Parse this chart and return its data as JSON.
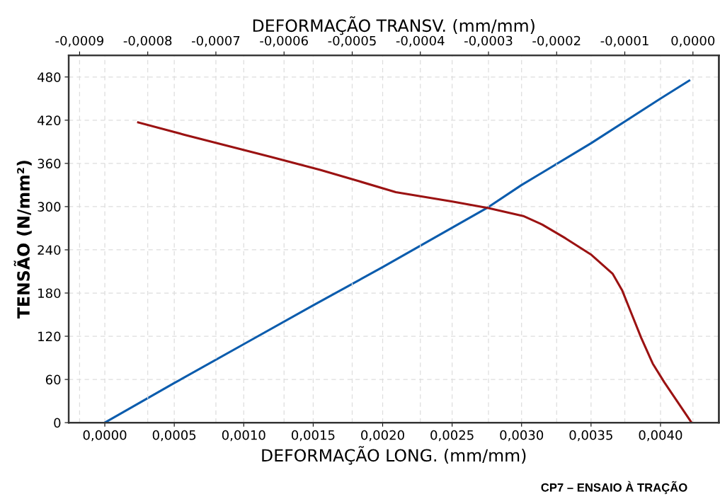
{
  "chart_data": {
    "type": "line",
    "xlabel": "DEFORMAÇÃO LONG. (mm/mm)",
    "x2label": "DEFORMAÇÃO TRANSV. (mm/mm)",
    "ylabel": "TENSÃO (N/mm²)",
    "annotations": [
      "CP7 – ENSAIO À TRAÇÃO"
    ],
    "xlim": [
      -0.00026,
      0.00442
    ],
    "xticks": [
      {
        "value": 0.0,
        "label": "0,0000"
      },
      {
        "value": 0.0005,
        "label": "0,0005"
      },
      {
        "value": 0.001,
        "label": "0,0010"
      },
      {
        "value": 0.0015,
        "label": "0,0015"
      },
      {
        "value": 0.002,
        "label": "0,0020"
      },
      {
        "value": 0.0025,
        "label": "0,0025"
      },
      {
        "value": 0.003,
        "label": "0,0030"
      },
      {
        "value": 0.0035,
        "label": "0,0035"
      },
      {
        "value": 0.004,
        "label": "0,0040"
      }
    ],
    "x2lim": [
      -0.000916,
      3.8e-05
    ],
    "x2ticks": [
      {
        "value": -0.0009,
        "label": "-0,0009"
      },
      {
        "value": -0.0008,
        "label": "-0,0008"
      },
      {
        "value": -0.0007,
        "label": "-0,0007"
      },
      {
        "value": -0.0006,
        "label": "-0,0006"
      },
      {
        "value": -0.0005,
        "label": "-0,0005"
      },
      {
        "value": -0.0004,
        "label": "-0,0004"
      },
      {
        "value": -0.0003,
        "label": "-0,0003"
      },
      {
        "value": -0.0002,
        "label": "-0,0002"
      },
      {
        "value": -0.0001,
        "label": "-0,0001"
      },
      {
        "value": 0.0,
        "label": "0,0000"
      }
    ],
    "ylim": [
      0,
      510
    ],
    "yticks": [
      0,
      60,
      120,
      180,
      240,
      300,
      360,
      420,
      480
    ],
    "grid": true,
    "marker": "none",
    "line_style": "solid",
    "series": [
      {
        "color": "#0b5cad",
        "x": [
          0.0,
          0.0005,
          0.001,
          0.0015,
          0.002,
          0.00275,
          0.003,
          0.0035,
          0.004,
          0.004207
        ],
        "values": [
          0,
          55,
          109,
          163,
          216,
          298,
          330,
          388,
          450,
          475
        ]
      },
      {
        "color": "#9b1212",
        "axis": "x2",
        "x": [
          -0.000814,
          -0.000747,
          -0.000619,
          -0.000547,
          -0.000489,
          -0.000436,
          -0.000353,
          -0.0003,
          -0.000249,
          -0.000221,
          -0.000187,
          -0.000149,
          -0.000118,
          -0.000104,
          -9e-05,
          -7.6e-05,
          -5.9e-05,
          -4.2e-05,
          -2e-06
        ],
        "values": [
          417,
          400,
          369,
          351,
          335,
          320,
          307,
          298,
          287,
          275,
          256,
          233,
          207,
          184,
          151,
          118,
          82,
          56,
          0
        ]
      }
    ]
  }
}
